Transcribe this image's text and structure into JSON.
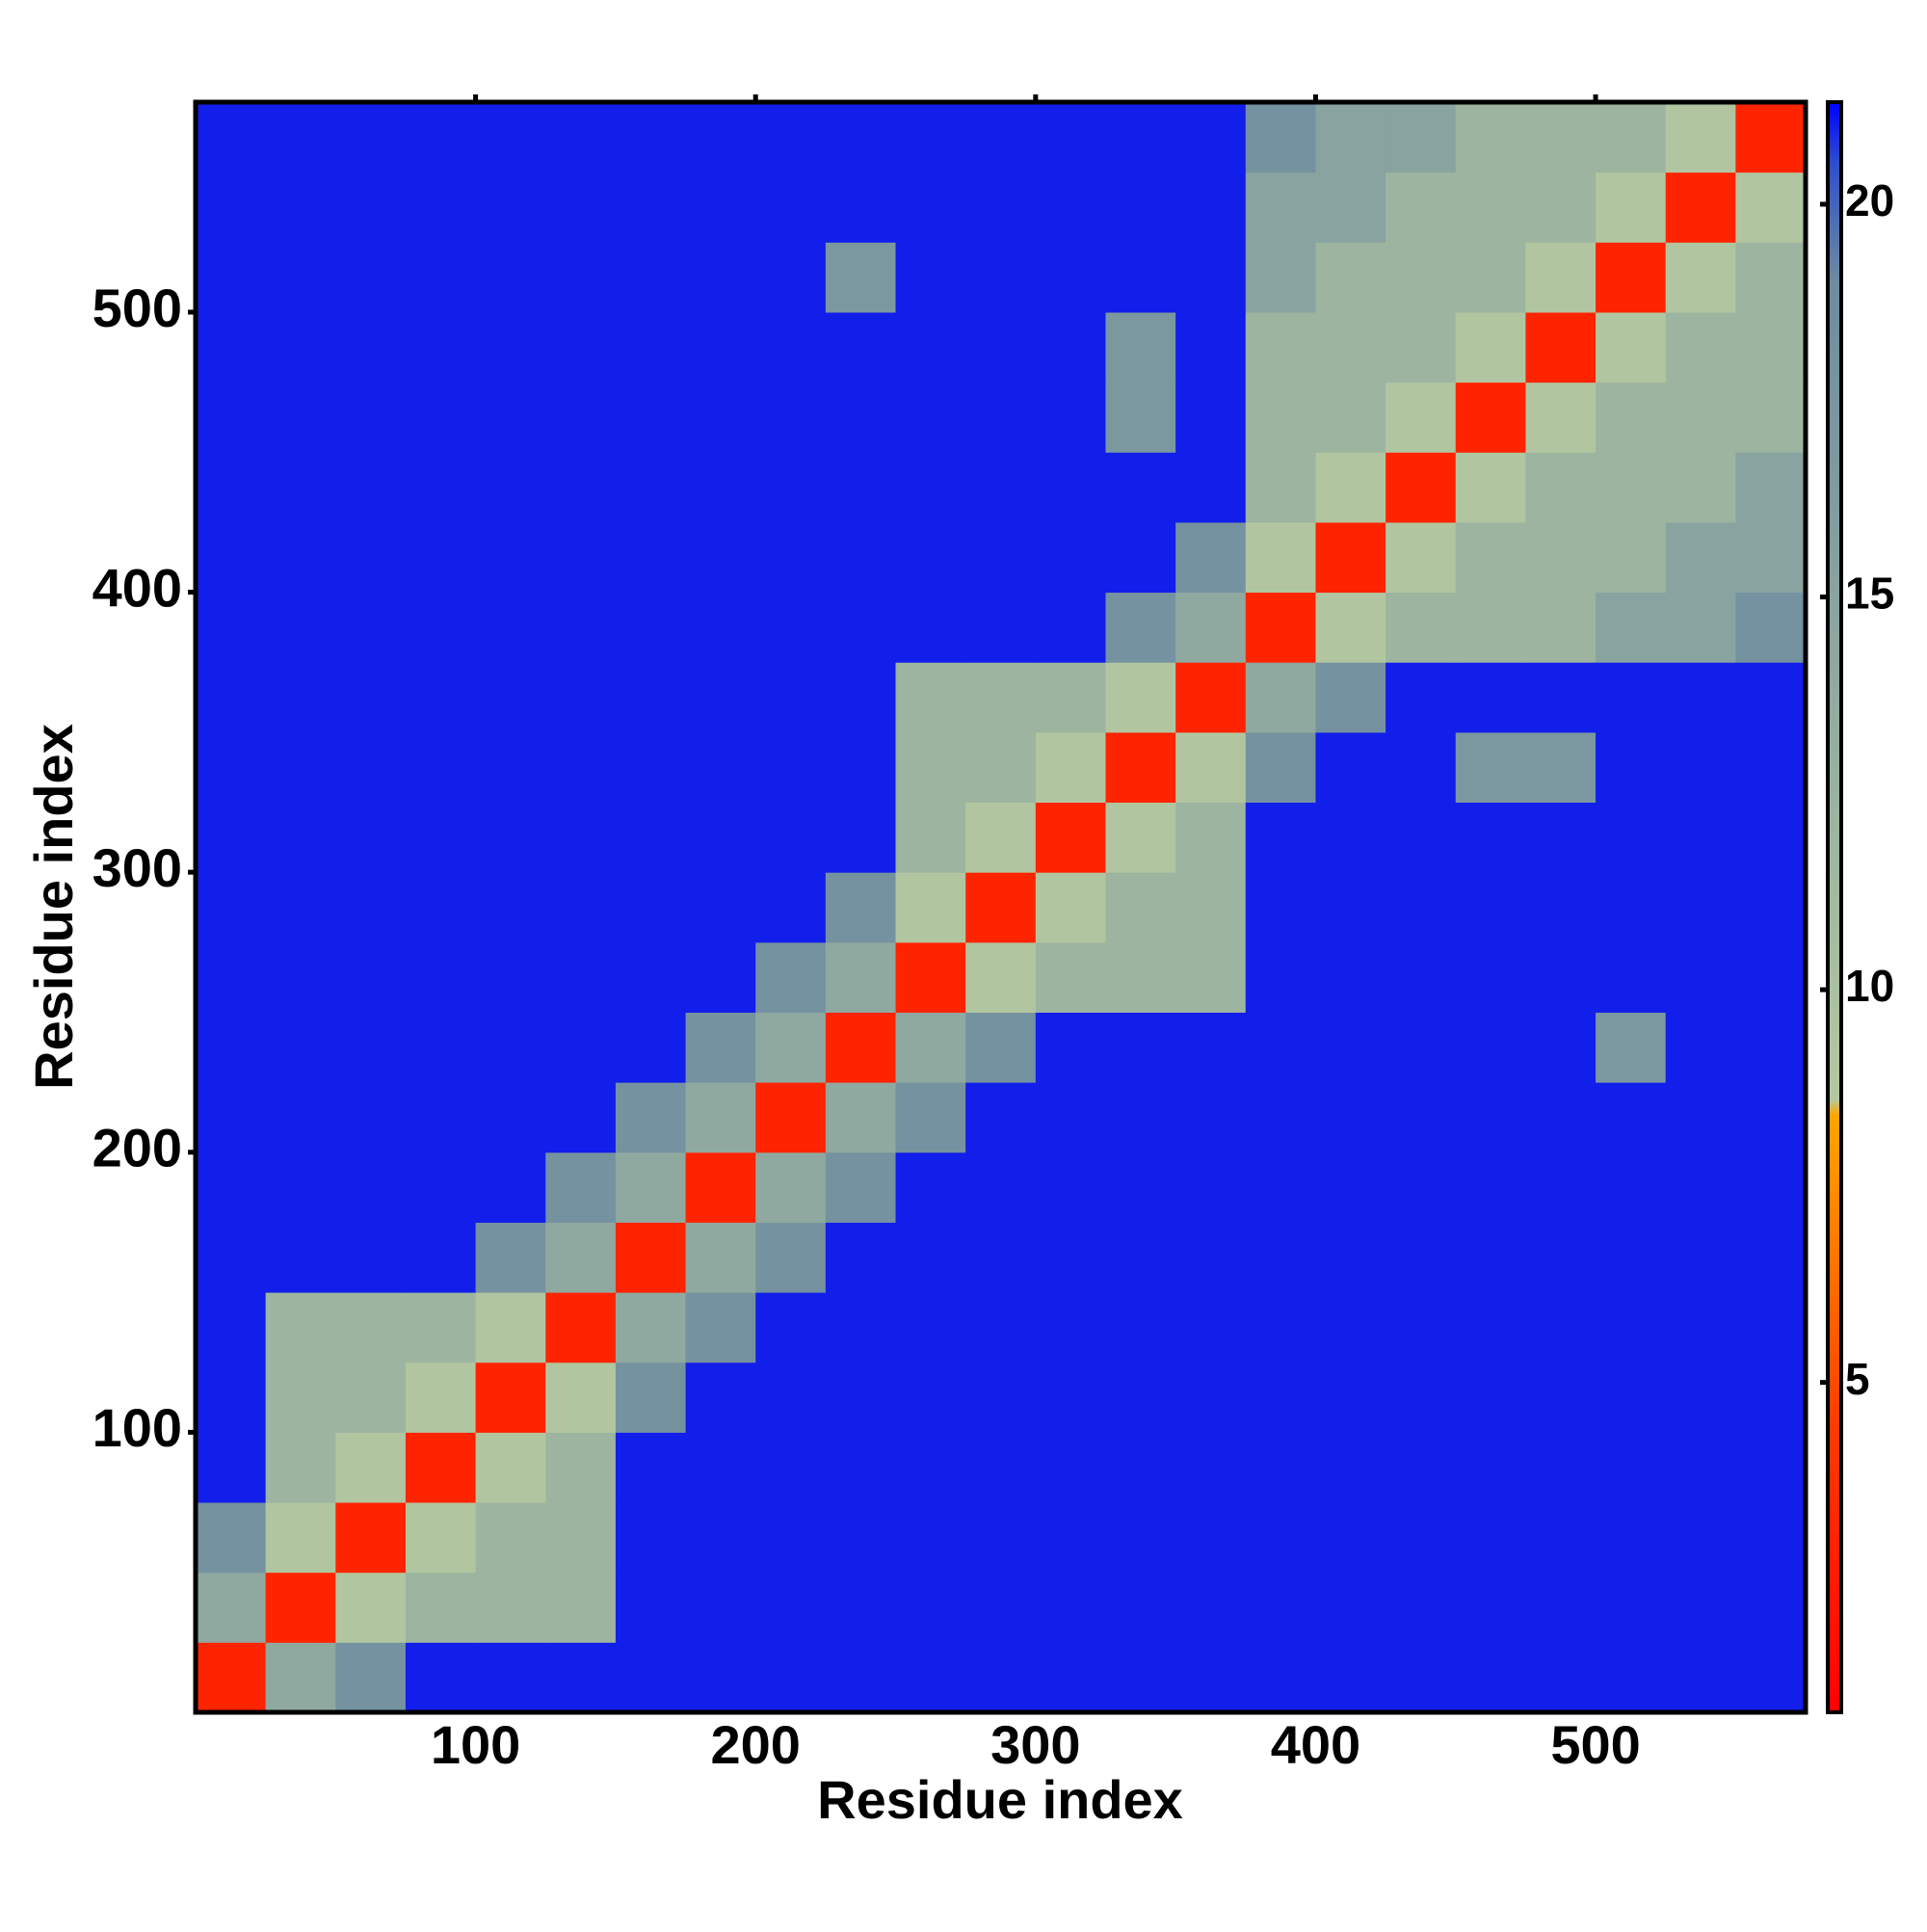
{
  "chart_data": {
    "type": "heatmap",
    "x_label": "Residue index",
    "y_label": "Residue index",
    "bins": [
      0,
      25,
      50,
      75,
      100,
      125,
      150,
      175,
      200,
      225,
      250,
      275,
      300,
      325,
      350,
      375,
      400,
      425,
      450,
      475,
      500,
      525,
      550,
      575
    ],
    "xlim": [
      0,
      575
    ],
    "ylim": [
      0,
      575
    ],
    "xticks": [
      100,
      200,
      300,
      400,
      500
    ],
    "yticks": [
      100,
      200,
      300,
      400,
      500
    ],
    "colorbar": {
      "lim": [
        0.8,
        21.3
      ],
      "ticks": [
        5,
        10,
        15,
        20
      ]
    },
    "colorscale": [
      [
        0.8,
        "#ff0000"
      ],
      [
        4.5,
        "#ff3c00"
      ],
      [
        8.4,
        "#ffa500"
      ],
      [
        8.6,
        "#b4c8a0"
      ],
      [
        19,
        "#6e8ca0"
      ],
      [
        20.5,
        "#3050c8"
      ],
      [
        21.3,
        "#0000ff"
      ]
    ],
    "values": [
      [
        3,
        14,
        18,
        21,
        21,
        21,
        21,
        21,
        21,
        21,
        21,
        21,
        21,
        21,
        21,
        21,
        21,
        21,
        21,
        21,
        21,
        21,
        21
      ],
      [
        14,
        3,
        9,
        12,
        12,
        12,
        21,
        21,
        21,
        21,
        21,
        21,
        21,
        21,
        21,
        21,
        21,
        21,
        21,
        21,
        21,
        21,
        21
      ],
      [
        18,
        9,
        3,
        9,
        12,
        12,
        21,
        21,
        21,
        21,
        21,
        21,
        21,
        21,
        21,
        21,
        21,
        21,
        21,
        21,
        21,
        21,
        21
      ],
      [
        21,
        12,
        9,
        3,
        9,
        12,
        21,
        21,
        21,
        21,
        21,
        21,
        21,
        21,
        21,
        21,
        21,
        21,
        21,
        21,
        21,
        21,
        21
      ],
      [
        21,
        12,
        12,
        9,
        3,
        9,
        18,
        21,
        21,
        21,
        21,
        21,
        21,
        21,
        21,
        21,
        21,
        21,
        21,
        21,
        21,
        21,
        21
      ],
      [
        21,
        12,
        12,
        12,
        9,
        3,
        14,
        18,
        21,
        21,
        21,
        21,
        21,
        21,
        21,
        21,
        21,
        21,
        21,
        21,
        21,
        21,
        21
      ],
      [
        21,
        21,
        21,
        21,
        18,
        14,
        3,
        14,
        18,
        21,
        21,
        21,
        21,
        21,
        21,
        21,
        21,
        21,
        21,
        21,
        21,
        21,
        21
      ],
      [
        21,
        21,
        21,
        21,
        21,
        18,
        14,
        3,
        14,
        18,
        21,
        21,
        21,
        21,
        21,
        21,
        21,
        21,
        21,
        21,
        21,
        21,
        21
      ],
      [
        21,
        21,
        21,
        21,
        21,
        21,
        18,
        14,
        3,
        14,
        18,
        21,
        21,
        21,
        21,
        21,
        21,
        21,
        21,
        21,
        21,
        21,
        21
      ],
      [
        21,
        21,
        21,
        21,
        21,
        21,
        21,
        18,
        14,
        3,
        14,
        18,
        21,
        21,
        21,
        21,
        21,
        21,
        21,
        21,
        17,
        21,
        21
      ],
      [
        21,
        21,
        21,
        21,
        21,
        21,
        21,
        21,
        18,
        14,
        3,
        9,
        12,
        12,
        12,
        21,
        21,
        21,
        21,
        21,
        21,
        21,
        21
      ],
      [
        21,
        21,
        21,
        21,
        21,
        21,
        21,
        21,
        21,
        18,
        9,
        3,
        9,
        12,
        12,
        21,
        21,
        21,
        21,
        21,
        21,
        21,
        21
      ],
      [
        21,
        21,
        21,
        21,
        21,
        21,
        21,
        21,
        21,
        21,
        12,
        9,
        3,
        9,
        12,
        21,
        21,
        21,
        21,
        21,
        21,
        21,
        21
      ],
      [
        21,
        21,
        21,
        21,
        21,
        21,
        21,
        21,
        21,
        21,
        12,
        12,
        9,
        3,
        9,
        18,
        21,
        21,
        17,
        17,
        21,
        21,
        21
      ],
      [
        21,
        21,
        21,
        21,
        21,
        21,
        21,
        21,
        21,
        21,
        12,
        12,
        12,
        9,
        3,
        14,
        18,
        21,
        21,
        21,
        21,
        21,
        21
      ],
      [
        21,
        21,
        21,
        21,
        21,
        21,
        21,
        21,
        21,
        21,
        21,
        21,
        21,
        18,
        14,
        3,
        9,
        12,
        12,
        12,
        15,
        15,
        18
      ],
      [
        21,
        21,
        21,
        21,
        21,
        21,
        21,
        21,
        21,
        21,
        21,
        21,
        21,
        21,
        18,
        9,
        3,
        9,
        12,
        12,
        12,
        15,
        15
      ],
      [
        21,
        21,
        21,
        21,
        21,
        21,
        21,
        21,
        21,
        21,
        21,
        21,
        21,
        21,
        21,
        12,
        9,
        3,
        9,
        12,
        12,
        12,
        15
      ],
      [
        21,
        21,
        21,
        21,
        21,
        21,
        21,
        21,
        21,
        21,
        21,
        21,
        21,
        17,
        21,
        12,
        12,
        9,
        3,
        9,
        12,
        12,
        12
      ],
      [
        21,
        21,
        21,
        21,
        21,
        21,
        21,
        21,
        21,
        21,
        21,
        21,
        21,
        17,
        21,
        12,
        12,
        12,
        9,
        3,
        9,
        12,
        12
      ],
      [
        21,
        21,
        21,
        21,
        21,
        21,
        21,
        21,
        21,
        17,
        21,
        21,
        21,
        21,
        21,
        15,
        12,
        12,
        12,
        9,
        3,
        9,
        12
      ],
      [
        21,
        21,
        21,
        21,
        21,
        21,
        21,
        21,
        21,
        21,
        21,
        21,
        21,
        21,
        21,
        15,
        15,
        12,
        12,
        12,
        9,
        3,
        9
      ],
      [
        21,
        21,
        21,
        21,
        21,
        21,
        21,
        21,
        21,
        21,
        21,
        21,
        21,
        21,
        21,
        18,
        15,
        15,
        12,
        12,
        12,
        9,
        3
      ]
    ]
  }
}
